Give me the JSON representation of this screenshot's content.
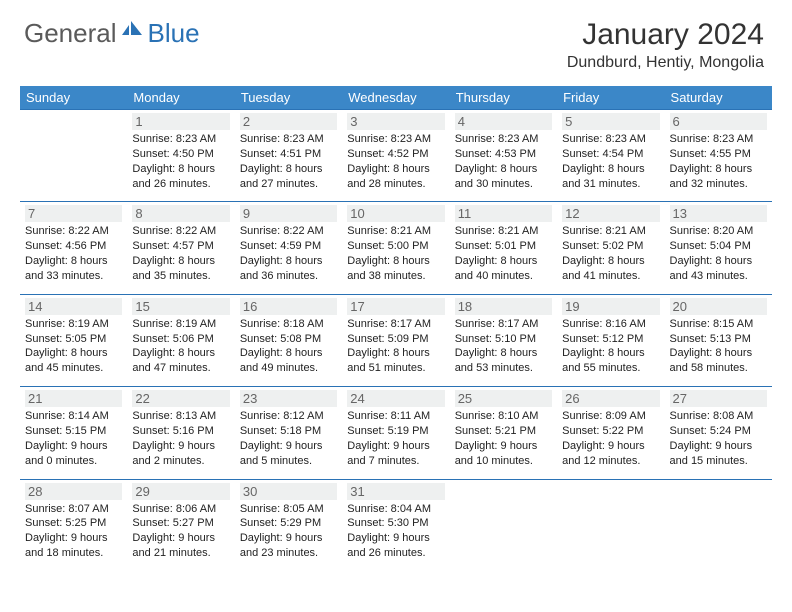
{
  "brand": {
    "text_general": "General",
    "text_blue": "Blue",
    "gray_color": "#5a5a5a",
    "blue_color": "#2a72b5"
  },
  "header": {
    "month_title": "January 2024",
    "location": "Dundburd, Hentiy, Mongolia"
  },
  "styling": {
    "header_row_bg": "#3b87c8",
    "header_row_text": "#ffffff",
    "row_border_color": "#2a72b5",
    "daynum_bg": "#eef0f0",
    "daynum_color": "#666666",
    "body_text_color": "#222222",
    "header_fontsize": 13,
    "daynum_fontsize": 13,
    "body_fontsize": 11,
    "title_fontsize": 30,
    "location_fontsize": 16
  },
  "weekdays": [
    "Sunday",
    "Monday",
    "Tuesday",
    "Wednesday",
    "Thursday",
    "Friday",
    "Saturday"
  ],
  "weeks": [
    [
      null,
      {
        "n": "1",
        "sr": "Sunrise: 8:23 AM",
        "ss": "Sunset: 4:50 PM",
        "d1": "Daylight: 8 hours",
        "d2": "and 26 minutes."
      },
      {
        "n": "2",
        "sr": "Sunrise: 8:23 AM",
        "ss": "Sunset: 4:51 PM",
        "d1": "Daylight: 8 hours",
        "d2": "and 27 minutes."
      },
      {
        "n": "3",
        "sr": "Sunrise: 8:23 AM",
        "ss": "Sunset: 4:52 PM",
        "d1": "Daylight: 8 hours",
        "d2": "and 28 minutes."
      },
      {
        "n": "4",
        "sr": "Sunrise: 8:23 AM",
        "ss": "Sunset: 4:53 PM",
        "d1": "Daylight: 8 hours",
        "d2": "and 30 minutes."
      },
      {
        "n": "5",
        "sr": "Sunrise: 8:23 AM",
        "ss": "Sunset: 4:54 PM",
        "d1": "Daylight: 8 hours",
        "d2": "and 31 minutes."
      },
      {
        "n": "6",
        "sr": "Sunrise: 8:23 AM",
        "ss": "Sunset: 4:55 PM",
        "d1": "Daylight: 8 hours",
        "d2": "and 32 minutes."
      }
    ],
    [
      {
        "n": "7",
        "sr": "Sunrise: 8:22 AM",
        "ss": "Sunset: 4:56 PM",
        "d1": "Daylight: 8 hours",
        "d2": "and 33 minutes."
      },
      {
        "n": "8",
        "sr": "Sunrise: 8:22 AM",
        "ss": "Sunset: 4:57 PM",
        "d1": "Daylight: 8 hours",
        "d2": "and 35 minutes."
      },
      {
        "n": "9",
        "sr": "Sunrise: 8:22 AM",
        "ss": "Sunset: 4:59 PM",
        "d1": "Daylight: 8 hours",
        "d2": "and 36 minutes."
      },
      {
        "n": "10",
        "sr": "Sunrise: 8:21 AM",
        "ss": "Sunset: 5:00 PM",
        "d1": "Daylight: 8 hours",
        "d2": "and 38 minutes."
      },
      {
        "n": "11",
        "sr": "Sunrise: 8:21 AM",
        "ss": "Sunset: 5:01 PM",
        "d1": "Daylight: 8 hours",
        "d2": "and 40 minutes."
      },
      {
        "n": "12",
        "sr": "Sunrise: 8:21 AM",
        "ss": "Sunset: 5:02 PM",
        "d1": "Daylight: 8 hours",
        "d2": "and 41 minutes."
      },
      {
        "n": "13",
        "sr": "Sunrise: 8:20 AM",
        "ss": "Sunset: 5:04 PM",
        "d1": "Daylight: 8 hours",
        "d2": "and 43 minutes."
      }
    ],
    [
      {
        "n": "14",
        "sr": "Sunrise: 8:19 AM",
        "ss": "Sunset: 5:05 PM",
        "d1": "Daylight: 8 hours",
        "d2": "and 45 minutes."
      },
      {
        "n": "15",
        "sr": "Sunrise: 8:19 AM",
        "ss": "Sunset: 5:06 PM",
        "d1": "Daylight: 8 hours",
        "d2": "and 47 minutes."
      },
      {
        "n": "16",
        "sr": "Sunrise: 8:18 AM",
        "ss": "Sunset: 5:08 PM",
        "d1": "Daylight: 8 hours",
        "d2": "and 49 minutes."
      },
      {
        "n": "17",
        "sr": "Sunrise: 8:17 AM",
        "ss": "Sunset: 5:09 PM",
        "d1": "Daylight: 8 hours",
        "d2": "and 51 minutes."
      },
      {
        "n": "18",
        "sr": "Sunrise: 8:17 AM",
        "ss": "Sunset: 5:10 PM",
        "d1": "Daylight: 8 hours",
        "d2": "and 53 minutes."
      },
      {
        "n": "19",
        "sr": "Sunrise: 8:16 AM",
        "ss": "Sunset: 5:12 PM",
        "d1": "Daylight: 8 hours",
        "d2": "and 55 minutes."
      },
      {
        "n": "20",
        "sr": "Sunrise: 8:15 AM",
        "ss": "Sunset: 5:13 PM",
        "d1": "Daylight: 8 hours",
        "d2": "and 58 minutes."
      }
    ],
    [
      {
        "n": "21",
        "sr": "Sunrise: 8:14 AM",
        "ss": "Sunset: 5:15 PM",
        "d1": "Daylight: 9 hours",
        "d2": "and 0 minutes."
      },
      {
        "n": "22",
        "sr": "Sunrise: 8:13 AM",
        "ss": "Sunset: 5:16 PM",
        "d1": "Daylight: 9 hours",
        "d2": "and 2 minutes."
      },
      {
        "n": "23",
        "sr": "Sunrise: 8:12 AM",
        "ss": "Sunset: 5:18 PM",
        "d1": "Daylight: 9 hours",
        "d2": "and 5 minutes."
      },
      {
        "n": "24",
        "sr": "Sunrise: 8:11 AM",
        "ss": "Sunset: 5:19 PM",
        "d1": "Daylight: 9 hours",
        "d2": "and 7 minutes."
      },
      {
        "n": "25",
        "sr": "Sunrise: 8:10 AM",
        "ss": "Sunset: 5:21 PM",
        "d1": "Daylight: 9 hours",
        "d2": "and 10 minutes."
      },
      {
        "n": "26",
        "sr": "Sunrise: 8:09 AM",
        "ss": "Sunset: 5:22 PM",
        "d1": "Daylight: 9 hours",
        "d2": "and 12 minutes."
      },
      {
        "n": "27",
        "sr": "Sunrise: 8:08 AM",
        "ss": "Sunset: 5:24 PM",
        "d1": "Daylight: 9 hours",
        "d2": "and 15 minutes."
      }
    ],
    [
      {
        "n": "28",
        "sr": "Sunrise: 8:07 AM",
        "ss": "Sunset: 5:25 PM",
        "d1": "Daylight: 9 hours",
        "d2": "and 18 minutes."
      },
      {
        "n": "29",
        "sr": "Sunrise: 8:06 AM",
        "ss": "Sunset: 5:27 PM",
        "d1": "Daylight: 9 hours",
        "d2": "and 21 minutes."
      },
      {
        "n": "30",
        "sr": "Sunrise: 8:05 AM",
        "ss": "Sunset: 5:29 PM",
        "d1": "Daylight: 9 hours",
        "d2": "and 23 minutes."
      },
      {
        "n": "31",
        "sr": "Sunrise: 8:04 AM",
        "ss": "Sunset: 5:30 PM",
        "d1": "Daylight: 9 hours",
        "d2": "and 26 minutes."
      },
      null,
      null,
      null
    ]
  ]
}
